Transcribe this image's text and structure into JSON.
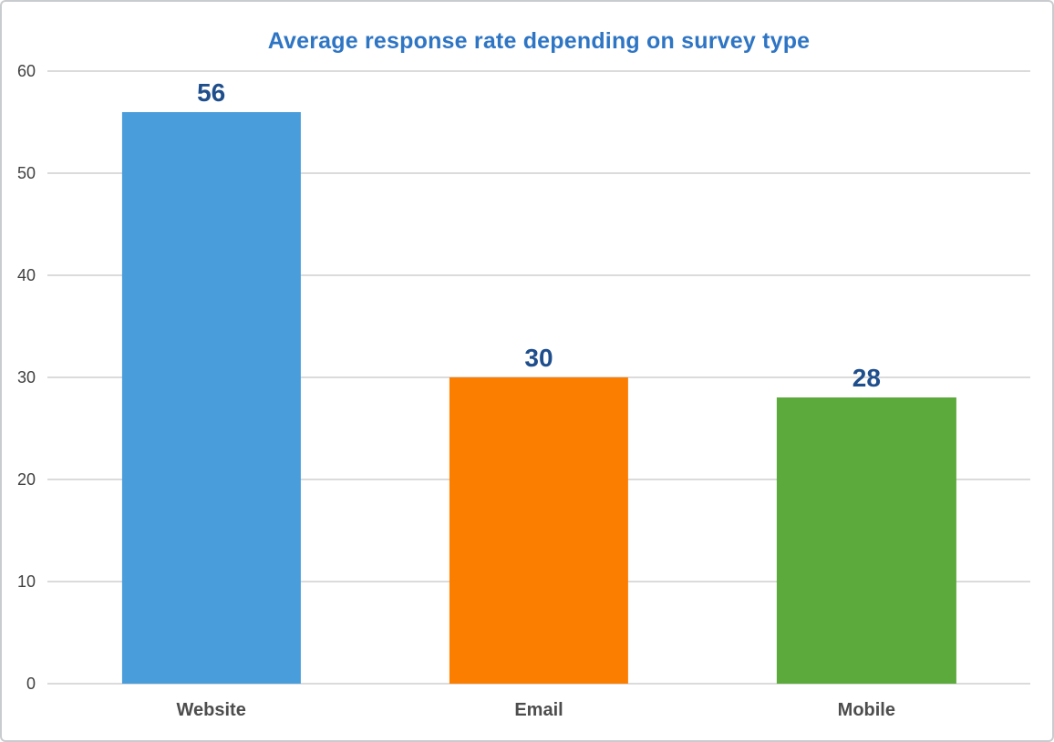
{
  "chart_data": {
    "type": "bar",
    "title": "Average response rate depending on survey type",
    "categories": [
      "Website",
      "Email",
      "Mobile"
    ],
    "values": [
      56,
      30,
      28
    ],
    "bar_colors": [
      "#4A9DDB",
      "#FC7E00",
      "#5BAA3B"
    ],
    "title_color": "#2E75C4",
    "value_label_color": "#1F4E8C",
    "ytick_label_color": "#404040",
    "category_label_color": "#4D4D4D",
    "gridline_color": "#DBDBDB",
    "frame_border_color": "#C9CCCF",
    "xlabel": "",
    "ylabel": "",
    "ylim": [
      0,
      60
    ],
    "yticks": [
      0,
      10,
      20,
      30,
      40,
      50,
      60
    ],
    "grid": true,
    "legend": false,
    "data_labels": true
  }
}
